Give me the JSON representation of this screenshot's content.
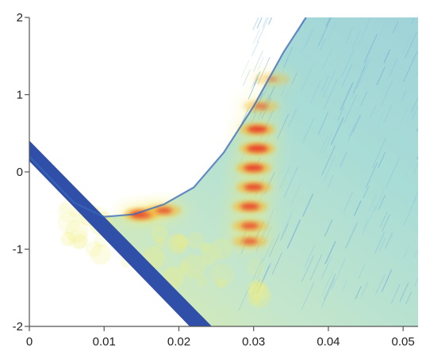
{
  "chart_data": {
    "type": "heatmap",
    "title": "",
    "xlabel": "",
    "ylabel": "",
    "xlim": [
      0,
      0.052
    ],
    "ylim": [
      -2,
      2
    ],
    "x_ticks": [
      0,
      0.01,
      0.02,
      0.03,
      0.04,
      0.05
    ],
    "x_tick_labels": [
      "0",
      "0.01",
      "0.02",
      "0.03",
      "0.04",
      "0.05"
    ],
    "y_ticks": [
      -2,
      -1,
      0,
      1,
      2
    ],
    "y_tick_labels": [
      "-2",
      "-1",
      "0",
      "1",
      "2"
    ],
    "grid": false,
    "legend": "none",
    "colormap": [
      "#2f4fa8",
      "#6aa8d8",
      "#bfe3dc",
      "#f2ef7a",
      "#f7b731",
      "#e8412a"
    ],
    "upper_boundary": [
      {
        "x": 0.0,
        "y": 0.2
      },
      {
        "x": 0.006,
        "y": -0.4
      },
      {
        "x": 0.01,
        "y": -0.58
      },
      {
        "x": 0.014,
        "y": -0.55
      },
      {
        "x": 0.018,
        "y": -0.42
      },
      {
        "x": 0.022,
        "y": -0.2
      },
      {
        "x": 0.026,
        "y": 0.25
      },
      {
        "x": 0.03,
        "y": 0.85
      },
      {
        "x": 0.034,
        "y": 1.55
      },
      {
        "x": 0.037,
        "y": 2.0
      }
    ],
    "lower_branch": [
      {
        "x": 0.0,
        "y": 0.2
      },
      {
        "x": 0.0225,
        "y": -2.0
      }
    ],
    "hotspots": [
      {
        "x": 0.015,
        "y": -0.55,
        "intensity": 1.0
      },
      {
        "x": 0.018,
        "y": -0.5,
        "intensity": 0.75
      },
      {
        "x": 0.0305,
        "y": 0.55,
        "intensity": 0.9
      },
      {
        "x": 0.0305,
        "y": 0.3,
        "intensity": 0.95
      },
      {
        "x": 0.03,
        "y": 0.05,
        "intensity": 0.9
      },
      {
        "x": 0.03,
        "y": -0.2,
        "intensity": 0.85
      },
      {
        "x": 0.0295,
        "y": -0.45,
        "intensity": 0.85
      },
      {
        "x": 0.0295,
        "y": -0.7,
        "intensity": 0.8
      },
      {
        "x": 0.0295,
        "y": -0.9,
        "intensity": 0.7
      },
      {
        "x": 0.031,
        "y": 0.85,
        "intensity": 0.6
      },
      {
        "x": 0.0325,
        "y": 1.2,
        "intensity": 0.45
      }
    ]
  }
}
